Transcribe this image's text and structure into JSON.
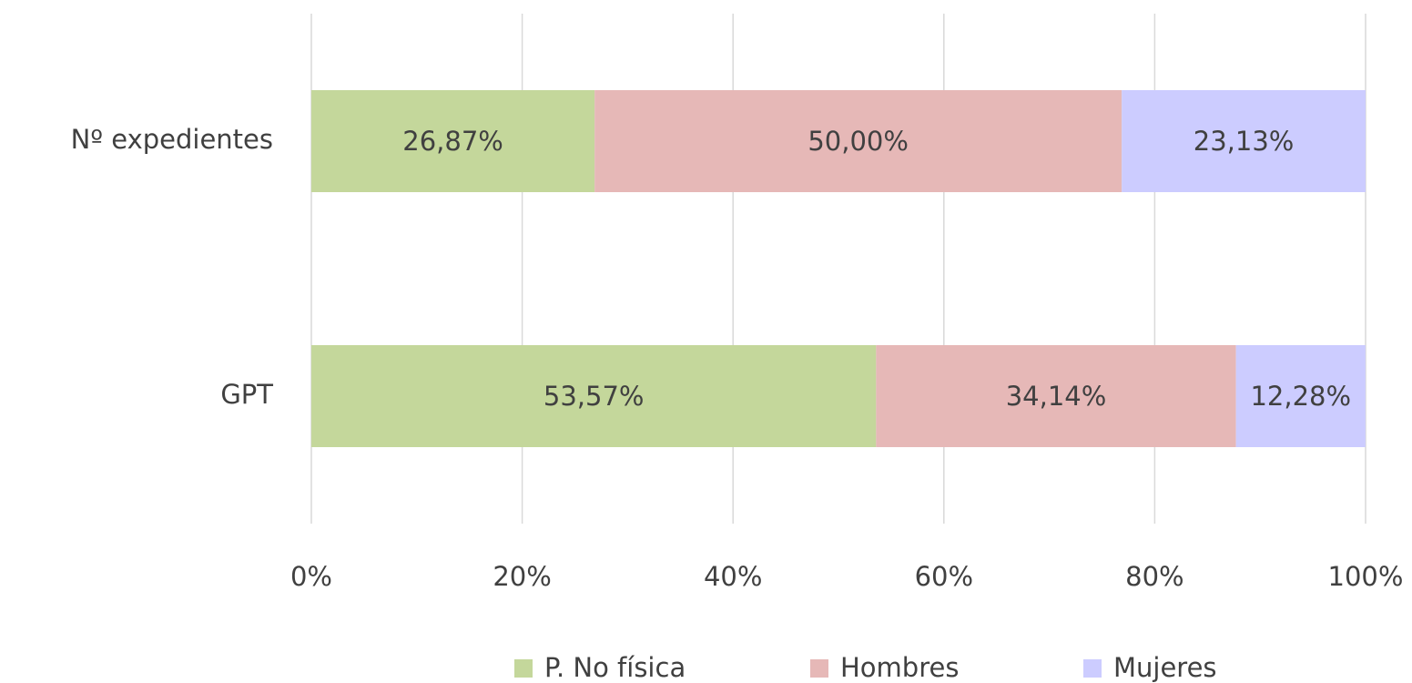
{
  "chart_data": {
    "type": "stacked_bar_horizontal",
    "categories": [
      "Nº expedientes",
      "GPT"
    ],
    "series": [
      {
        "name": "P. No física",
        "color": "#c4d79b",
        "values": [
          26.87,
          53.57
        ],
        "value_labels": [
          "26,87%",
          "53,57%"
        ]
      },
      {
        "name": "Hombres",
        "color": "#e6b8b7",
        "values": [
          50.0,
          34.14
        ],
        "value_labels": [
          "50,00%",
          "34,14%"
        ]
      },
      {
        "name": "Mujeres",
        "color": "#ccccff",
        "values": [
          23.13,
          12.28
        ],
        "value_labels": [
          "23,13%",
          "12,28%"
        ]
      }
    ],
    "xlim": [
      0,
      100
    ],
    "xticks": [
      {
        "value": 0,
        "label": "0%"
      },
      {
        "value": 20,
        "label": "20%"
      },
      {
        "value": 40,
        "label": "40%"
      },
      {
        "value": 60,
        "label": "60%"
      },
      {
        "value": 80,
        "label": "80%"
      },
      {
        "value": 100,
        "label": "100%"
      }
    ],
    "grid": true,
    "legend": "bottom"
  }
}
